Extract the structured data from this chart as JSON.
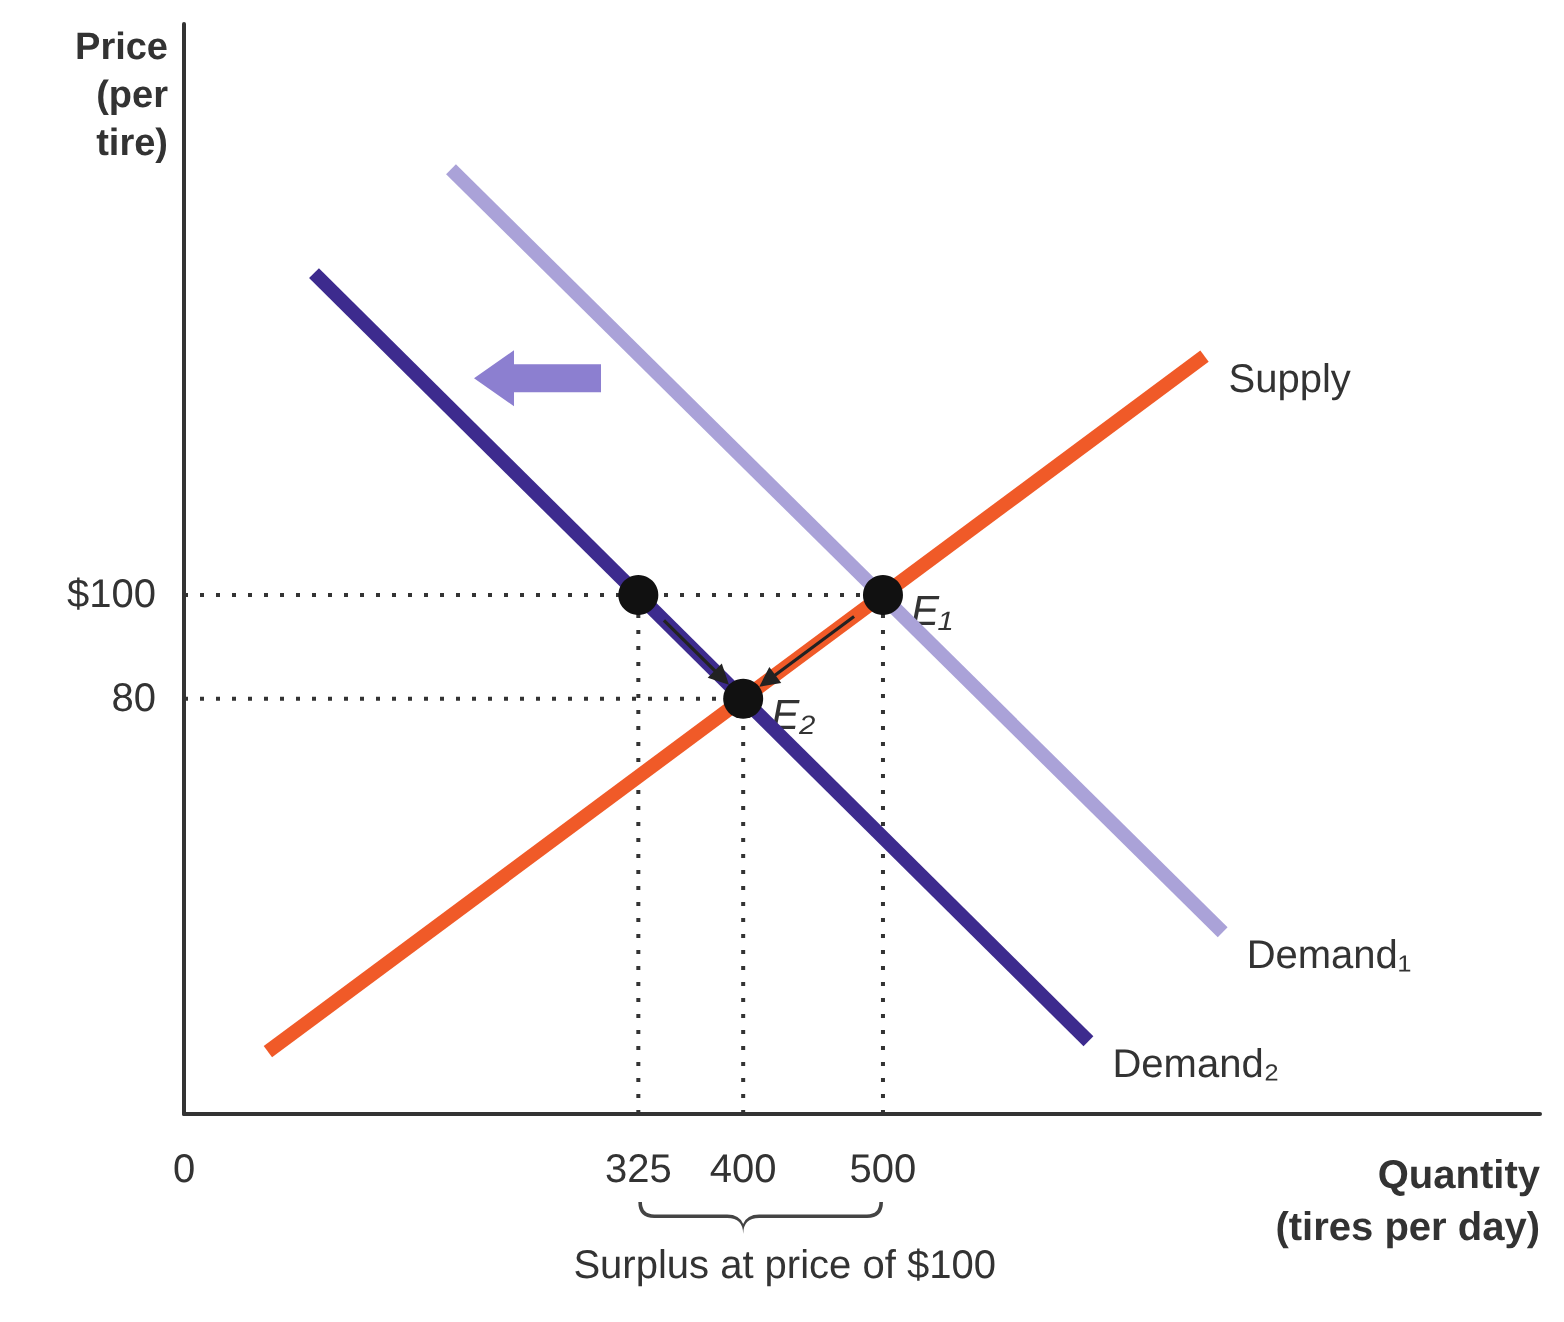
{
  "chart_data": {
    "type": "line",
    "xlabel": "Quantity\n(tires per day)",
    "ylabel": "Price\n(per\ntire)",
    "xlim": [
      0,
      970
    ],
    "ylim": [
      0,
      210
    ],
    "xticks": [
      0,
      325,
      400,
      500
    ],
    "yticks": [
      80,
      {
        "value": 100,
        "label": "$100"
      }
    ],
    "grid": false,
    "legend": false,
    "marker": "none",
    "line_style": "solid",
    "series": [
      {
        "name": "Supply",
        "color": "#f05a28",
        "x": [
          60,
          730
        ],
        "values": [
          12,
          146
        ]
      },
      {
        "name": "Demand₁",
        "color": "#aaa2d8",
        "x": [
          191,
          743
        ],
        "values": [
          182,
          35
        ]
      },
      {
        "name": "Demand₂",
        "color": "#3d2b8e",
        "x": [
          93,
          647
        ],
        "values": [
          162,
          14
        ]
      },
      {
        "color": "#333333",
        "line_style": "dotted",
        "x": [
          0,
          500
        ],
        "values": [
          100,
          100
        ]
      },
      {
        "color": "#333333",
        "line_style": "dotted",
        "x": [
          0,
          400
        ],
        "values": [
          80,
          80
        ]
      },
      {
        "color": "#333333",
        "line_style": "dotted",
        "x": [
          325,
          325
        ],
        "values": [
          0,
          100
        ]
      },
      {
        "color": "#333333",
        "line_style": "dotted",
        "x": [
          400,
          400
        ],
        "values": [
          0,
          80
        ]
      },
      {
        "color": "#333333",
        "line_style": "dotted",
        "x": [
          500,
          500
        ],
        "values": [
          0,
          100
        ]
      },
      {
        "type": "scatter",
        "color": "#111111",
        "marker": "circle",
        "x": [
          325,
          400,
          500
        ],
        "values": [
          100,
          80,
          100
        ]
      }
    ],
    "annotations": [
      {
        "text": "E₁",
        "x": 500,
        "y": 100
      },
      {
        "text": "E₂",
        "x": 400,
        "y": 80
      },
      "Surplus at price of $100"
    ]
  }
}
